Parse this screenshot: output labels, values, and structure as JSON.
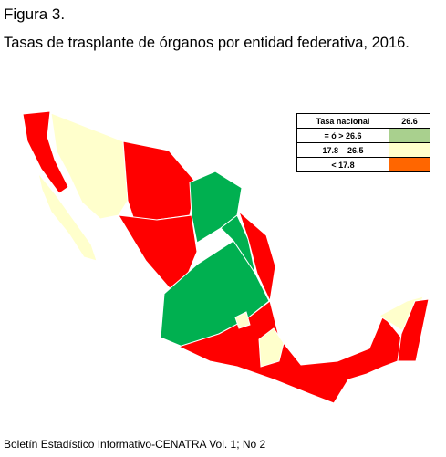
{
  "figure_label": "Figura 3.",
  "title": "Tasas de trasplante de órganos por entidad federativa, 2016.",
  "legend": {
    "header": {
      "label": "Tasa nacional",
      "value": "26.6"
    },
    "rows": [
      {
        "label": "= ó > 26.6",
        "color": "#a9d08e"
      },
      {
        "label": "17.8 – 26.5",
        "color": "#ffffcc"
      },
      {
        "label": "< 17.8",
        "color": "#ff6600"
      }
    ]
  },
  "source": "Boletín Estadístico Informativo-CENATRA Vol. 1; No 2"
}
